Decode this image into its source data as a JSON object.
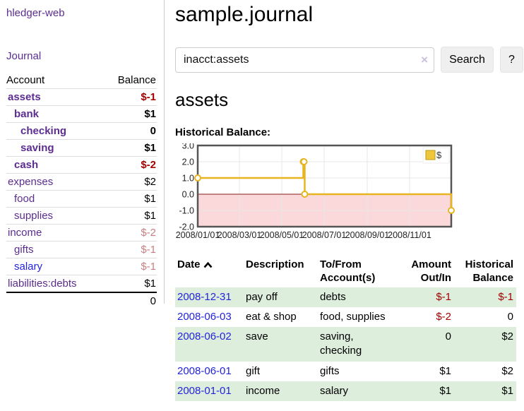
{
  "sidebar": {
    "brand": "hledger-web",
    "nav": {
      "journal": "Journal"
    },
    "accounts": {
      "headers": {
        "account": "Account",
        "balance": "Balance"
      },
      "rows": [
        {
          "name": "assets",
          "indent": 1,
          "bold": true,
          "balance": "$-1"
        },
        {
          "name": "bank",
          "indent": 2,
          "bold": true,
          "balance": "$1"
        },
        {
          "name": "checking",
          "indent": 3,
          "bold": true,
          "balance": "0"
        },
        {
          "name": "saving",
          "indent": 3,
          "bold": true,
          "balance": "$1"
        },
        {
          "name": "cash",
          "indent": 2,
          "bold": true,
          "balance": "$-2"
        },
        {
          "name": "expenses",
          "indent": 1,
          "bold": false,
          "balance": "$2"
        },
        {
          "name": "food",
          "indent": 2,
          "bold": false,
          "balance": "$1"
        },
        {
          "name": "supplies",
          "indent": 2,
          "bold": false,
          "balance": "$1"
        },
        {
          "name": "income",
          "indent": 1,
          "bold": false,
          "balance": "$-2"
        },
        {
          "name": "gifts",
          "indent": 2,
          "bold": false,
          "balance": "$-1"
        },
        {
          "name": "salary",
          "indent": 2,
          "bold": false,
          "balance": "$-1",
          "link": "blue"
        },
        {
          "name": "liabilities:debts",
          "indent": 1,
          "bold": false,
          "balance": "$1"
        }
      ],
      "total": "0"
    }
  },
  "main": {
    "title": "sample.journal",
    "search": {
      "value": "inacct:assets",
      "clear_icon": "×",
      "button": "Search",
      "help": "?"
    },
    "account_heading": "assets",
    "chart_label": "Historical Balance:"
  },
  "chart_data": {
    "type": "line",
    "step": true,
    "title": "Historical Balance",
    "series": [
      {
        "name": "$",
        "points": [
          [
            "2008-01-01",
            1
          ],
          [
            "2008-06-01",
            2
          ],
          [
            "2008-06-02",
            2
          ],
          [
            "2008-06-03",
            0
          ],
          [
            "2008-12-31",
            -1
          ]
        ]
      }
    ],
    "ylim": [
      -2.0,
      3.0
    ],
    "yticks": [
      "3.0",
      "2.0",
      "1.0",
      "0.0",
      "-1.0",
      "-2.0"
    ],
    "xticks": [
      "2008/01/01",
      "2008/03/01",
      "2008/05/01",
      "2008/07/01",
      "2008/09/01",
      "2008/11/01"
    ],
    "x_start": "2008-01-01",
    "x_end": "2008-12-31",
    "legend": "$",
    "legend_position": "top-right",
    "grid": true,
    "colors": {
      "line": "#e8b420",
      "marker_fill": "#ffffff",
      "negative_fill": "#fbd9da",
      "zero_line": "#8b1a1a",
      "border": "#555555",
      "gridline": "#e7e7e7",
      "legend_square_fill": "#eec73e",
      "legend_square_border": "#c09a10"
    }
  },
  "transactions": {
    "headers": {
      "date": "Date",
      "description": "Description",
      "accounts": "To/From Account(s)",
      "amount": "Amount Out/In",
      "balance": "Historical Balance"
    },
    "sort": {
      "column": "date",
      "direction": "asc"
    },
    "rows": [
      {
        "date": "2008-12-31",
        "description": "pay off",
        "accounts": "debts",
        "amount": "$-1",
        "balance": "$-1"
      },
      {
        "date": "2008-06-03",
        "description": "eat & shop",
        "accounts": "food, supplies",
        "amount": "$-2",
        "balance": "0"
      },
      {
        "date": "2008-06-02",
        "description": "save",
        "accounts": "saving, checking",
        "amount": "0",
        "balance": "$2"
      },
      {
        "date": "2008-06-01",
        "description": "gift",
        "accounts": "gifts",
        "amount": "$1",
        "balance": "$2"
      },
      {
        "date": "2008-01-01",
        "description": "income",
        "accounts": "salary",
        "amount": "$1",
        "balance": "$1"
      }
    ]
  }
}
